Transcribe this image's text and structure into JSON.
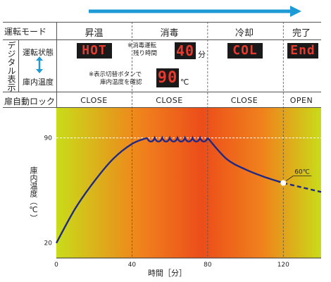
{
  "header": {
    "mode_label": "運転モード",
    "phases": [
      "昇温",
      "消毒",
      "冷却",
      "完了"
    ]
  },
  "digital": {
    "section_label": "デジタル表示",
    "status_label": "運転状態",
    "temp_label": "庫内温度",
    "displays": [
      "HOT",
      "40",
      "COL",
      "End"
    ],
    "remaining_note": [
      "※消毒運転",
      "残り時間"
    ],
    "remaining_unit": "分",
    "switch_note": [
      "※表示切替ボタンで",
      "庫内温度を確認"
    ],
    "temp_display": "90",
    "temp_unit": "℃"
  },
  "lock": {
    "label": "扉自動ロック",
    "states": [
      "CLOSE",
      "CLOSE",
      "CLOSE",
      "OPEN"
    ]
  },
  "chart_data": {
    "type": "line",
    "xlabel": "時間［分］",
    "ylabel": "庫内温度（℃）",
    "x_ticks": [
      0,
      40,
      80,
      120
    ],
    "y_ticks": [
      20,
      90
    ],
    "xlim": [
      0,
      140
    ],
    "ylim": [
      10,
      110
    ],
    "annotation": "60℃",
    "series": [
      {
        "x": [
          0,
          10,
          20,
          30,
          40,
          48,
          80,
          90,
          100,
          110,
          120,
          130,
          140
        ],
        "y": [
          20,
          43,
          61,
          76,
          86,
          90,
          90,
          76,
          69,
          64,
          60,
          57,
          54
        ]
      }
    ],
    "oscillation_range": [
      48,
      80
    ],
    "dashed_from": 120,
    "marker": {
      "x": 120,
      "y": 60
    }
  },
  "colors": {
    "gradient_edge": "#c9dc1a",
    "gradient_mid": "#f0821c",
    "gradient_center": "#ec4d1a",
    "curve": "#1f2a86",
    "arrow": "#1e9ad6",
    "segment_text": "#e8392f",
    "segment_bg": "#1a1a1a"
  }
}
